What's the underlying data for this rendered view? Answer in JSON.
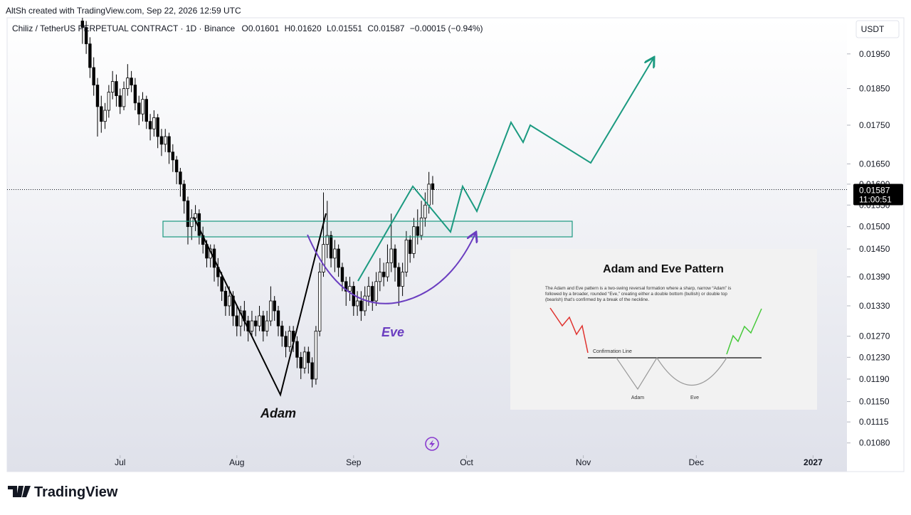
{
  "header": {
    "credit": "AltSh created with TradingView.com, Sep 22, 2026 12:59 UTC"
  },
  "chart_data": {
    "type": "candlestick",
    "legend": {
      "symbol": "Chiliz / TetherUS PERPETUAL CONTRACT · 1D · Binance",
      "open": "O0.01601",
      "high": "H0.01620",
      "low": "L0.01551",
      "close": "C0.01587",
      "change": "−0.00015 (−0.94%)"
    },
    "currency": "USDT",
    "log_scale": true,
    "up_color": "#ffffff",
    "down_color": "#000000",
    "x": [
      "2026-06-21",
      "2026-06-22",
      "2026-06-23",
      "2026-06-24",
      "2026-06-25",
      "2026-06-26",
      "2026-06-27",
      "2026-06-28",
      "2026-06-29",
      "2026-06-30",
      "2026-07-01",
      "2026-07-02",
      "2026-07-03",
      "2026-07-04",
      "2026-07-05",
      "2026-07-06",
      "2026-07-07",
      "2026-07-08",
      "2026-07-09",
      "2026-07-10",
      "2026-07-11",
      "2026-07-12",
      "2026-07-13",
      "2026-07-14",
      "2026-07-15",
      "2026-07-16",
      "2026-07-17",
      "2026-07-18",
      "2026-07-19",
      "2026-07-20",
      "2026-07-21",
      "2026-07-22",
      "2026-07-23",
      "2026-07-24",
      "2026-07-25",
      "2026-07-26",
      "2026-07-27",
      "2026-07-28",
      "2026-07-29",
      "2026-07-30",
      "2026-07-31",
      "2026-08-01",
      "2026-08-02",
      "2026-08-03",
      "2026-08-04",
      "2026-08-05",
      "2026-08-06",
      "2026-08-07",
      "2026-08-08",
      "2026-08-09",
      "2026-08-10",
      "2026-08-11",
      "2026-08-12",
      "2026-08-13",
      "2026-08-14",
      "2026-08-15",
      "2026-08-16",
      "2026-08-17",
      "2026-08-18",
      "2026-08-19",
      "2026-08-20",
      "2026-08-21",
      "2026-08-22",
      "2026-08-23",
      "2026-08-24",
      "2026-08-25",
      "2026-08-26",
      "2026-08-27",
      "2026-08-28",
      "2026-08-29",
      "2026-08-30",
      "2026-08-31",
      "2026-09-01",
      "2026-09-02",
      "2026-09-03",
      "2026-09-04",
      "2026-09-05",
      "2026-09-06",
      "2026-09-07",
      "2026-09-08",
      "2026-09-09",
      "2026-09-10",
      "2026-09-11",
      "2026-09-12",
      "2026-09-13",
      "2026-09-14",
      "2026-09-15",
      "2026-09-16",
      "2026-09-17",
      "2026-09-18",
      "2026-09-19",
      "2026-09-20",
      "2026-09-21",
      "2026-09-22"
    ],
    "open": [
      0.0205,
      0.0203,
      0.0198,
      0.0191,
      0.0186,
      0.018,
      0.0176,
      0.0179,
      0.0184,
      0.0187,
      0.0183,
      0.018,
      0.0185,
      0.0188,
      0.0186,
      0.0181,
      0.0178,
      0.0182,
      0.0176,
      0.0174,
      0.0177,
      0.0172,
      0.017,
      0.0172,
      0.0168,
      0.0166,
      0.0163,
      0.016,
      0.0156,
      0.015,
      0.0152,
      0.0153,
      0.0148,
      0.0146,
      0.0143,
      0.0145,
      0.0141,
      0.0139,
      0.0136,
      0.0133,
      0.0135,
      0.0131,
      0.0129,
      0.0132,
      0.013,
      0.0128,
      0.013,
      0.0129,
      0.0131,
      0.0128,
      0.013,
      0.0134,
      0.0132,
      0.0129,
      0.0127,
      0.0125,
      0.0128,
      0.0126,
      0.0123,
      0.0121,
      0.0124,
      0.0122,
      0.0119,
      0.0128,
      0.014,
      0.0146,
      0.0148,
      0.0143,
      0.0145,
      0.0141,
      0.0138,
      0.0136,
      0.0137,
      0.0133,
      0.0134,
      0.0132,
      0.0135,
      0.0137,
      0.0134,
      0.0138,
      0.014,
      0.0139,
      0.0142,
      0.0145,
      0.0141,
      0.0137,
      0.014,
      0.0147,
      0.0144,
      0.015,
      0.0148,
      0.0152,
      0.0155,
      0.01601
    ],
    "high": [
      0.021,
      0.0205,
      0.02,
      0.0194,
      0.0188,
      0.0183,
      0.0181,
      0.0186,
      0.019,
      0.0189,
      0.0185,
      0.0187,
      0.0192,
      0.019,
      0.0188,
      0.0183,
      0.0184,
      0.0183,
      0.0178,
      0.0179,
      0.0178,
      0.0174,
      0.0174,
      0.0173,
      0.017,
      0.0167,
      0.0164,
      0.0161,
      0.0157,
      0.0154,
      0.0155,
      0.0154,
      0.015,
      0.0147,
      0.0146,
      0.0146,
      0.0143,
      0.014,
      0.0137,
      0.0137,
      0.0136,
      0.0133,
      0.0133,
      0.0134,
      0.0131,
      0.0132,
      0.0131,
      0.0133,
      0.0132,
      0.0132,
      0.0137,
      0.0135,
      0.0133,
      0.013,
      0.0128,
      0.0129,
      0.0129,
      0.0127,
      0.0124,
      0.0125,
      0.0125,
      0.0123,
      0.0129,
      0.0142,
      0.0158,
      0.0156,
      0.0149,
      0.0147,
      0.0146,
      0.0142,
      0.0139,
      0.0139,
      0.0138,
      0.0136,
      0.0136,
      0.0137,
      0.0139,
      0.0138,
      0.014,
      0.0143,
      0.0142,
      0.0146,
      0.0153,
      0.0146,
      0.0142,
      0.0142,
      0.0149,
      0.0148,
      0.0152,
      0.0154,
      0.0156,
      0.0158,
      0.0163,
      0.0162
    ],
    "low": [
      0.0198,
      0.0195,
      0.0188,
      0.0183,
      0.0172,
      0.0173,
      0.0174,
      0.0177,
      0.0182,
      0.018,
      0.0178,
      0.0179,
      0.0183,
      0.0184,
      0.0179,
      0.0175,
      0.0176,
      0.0174,
      0.0171,
      0.0172,
      0.0169,
      0.0167,
      0.0168,
      0.0165,
      0.0163,
      0.016,
      0.0157,
      0.0153,
      0.0146,
      0.0147,
      0.0149,
      0.0146,
      0.0144,
      0.0141,
      0.0141,
      0.0138,
      0.0137,
      0.0134,
      0.0131,
      0.0131,
      0.0129,
      0.0127,
      0.0127,
      0.0128,
      0.0126,
      0.0127,
      0.0127,
      0.0128,
      0.0126,
      0.0127,
      0.0129,
      0.013,
      0.0127,
      0.0125,
      0.0123,
      0.0124,
      0.0124,
      0.0121,
      0.0119,
      0.012,
      0.012,
      0.01175,
      0.0118,
      0.0127,
      0.0139,
      0.0143,
      0.0141,
      0.014,
      0.0139,
      0.0136,
      0.0133,
      0.0134,
      0.0131,
      0.0131,
      0.013,
      0.0131,
      0.0133,
      0.0132,
      0.0133,
      0.0136,
      0.0137,
      0.0138,
      0.014,
      0.0138,
      0.0133,
      0.0135,
      0.0139,
      0.0142,
      0.0143,
      0.0146,
      0.0147,
      0.015,
      0.0153,
      0.01551
    ],
    "close": [
      0.0203,
      0.0198,
      0.0191,
      0.0186,
      0.018,
      0.0176,
      0.0179,
      0.0184,
      0.0187,
      0.0183,
      0.018,
      0.0185,
      0.0188,
      0.0186,
      0.0181,
      0.0178,
      0.0182,
      0.0176,
      0.0174,
      0.0177,
      0.0172,
      0.017,
      0.0172,
      0.0168,
      0.0166,
      0.0163,
      0.016,
      0.0156,
      0.015,
      0.0152,
      0.0153,
      0.0148,
      0.0146,
      0.0143,
      0.0145,
      0.0141,
      0.0139,
      0.0136,
      0.0133,
      0.0135,
      0.0131,
      0.0129,
      0.0132,
      0.013,
      0.0128,
      0.013,
      0.0129,
      0.0131,
      0.0128,
      0.013,
      0.0134,
      0.0132,
      0.0129,
      0.0127,
      0.0125,
      0.0128,
      0.0126,
      0.0123,
      0.0121,
      0.0124,
      0.0122,
      0.0119,
      0.0128,
      0.014,
      0.0146,
      0.0148,
      0.0143,
      0.0145,
      0.0141,
      0.0138,
      0.0136,
      0.0137,
      0.0133,
      0.0134,
      0.0132,
      0.0135,
      0.0137,
      0.0134,
      0.0138,
      0.014,
      0.0139,
      0.0142,
      0.0145,
      0.0141,
      0.0137,
      0.014,
      0.0147,
      0.0144,
      0.015,
      0.0148,
      0.0152,
      0.0155,
      0.016,
      0.01587
    ],
    "xlim": [
      "2026-06-01",
      "2027-01-10"
    ],
    "xticks": [
      {
        "value": "2026-07-01",
        "label": "Jul"
      },
      {
        "value": "2026-08-01",
        "label": "Aug"
      },
      {
        "value": "2026-09-01",
        "label": "Sep"
      },
      {
        "value": "2026-10-01",
        "label": "Oct"
      },
      {
        "value": "2026-11-01",
        "label": "Nov"
      },
      {
        "value": "2026-12-01",
        "label": "Dec"
      },
      {
        "value": "2027-01-01",
        "label": "2027"
      }
    ],
    "ylim": [
      0.0106,
      0.0206
    ],
    "yticks": [
      {
        "value": 0.0195,
        "label": "0.01950"
      },
      {
        "value": 0.0185,
        "label": "0.01850"
      },
      {
        "value": 0.0175,
        "label": "0.01750"
      },
      {
        "value": 0.0165,
        "label": "0.01650"
      },
      {
        "value": 0.016,
        "label": "0.01600"
      },
      {
        "value": 0.0155,
        "label": "0.01550"
      },
      {
        "value": 0.015,
        "label": "0.01500"
      },
      {
        "value": 0.0145,
        "label": "0.01450"
      },
      {
        "value": 0.0139,
        "label": "0.01390"
      },
      {
        "value": 0.0133,
        "label": "0.01330"
      },
      {
        "value": 0.0127,
        "label": "0.01270"
      },
      {
        "value": 0.0123,
        "label": "0.01230"
      },
      {
        "value": 0.0119,
        "label": "0.01190"
      },
      {
        "value": 0.0115,
        "label": "0.01150"
      },
      0.01115,
      {
        "value": 0.0108,
        "label": "0.01080"
      }
    ],
    "last_price": {
      "value": 0.01587,
      "label": "0.01587"
    },
    "countdown": "11:00:51",
    "annotations": {
      "adam": "Adam",
      "eve": "Eve"
    }
  },
  "inset": {
    "title": "Adam and Eve Pattern",
    "description": [
      "The Adam and Eve pattern is a two-swing reversal formation where a sharp, narrow “Adam” is",
      "followed by a broader, rounded “Eve,” creating either a double bottom (bullish) or double top",
      "(bearish) that’s confirmed by a break of the neckline."
    ],
    "confirmation": "Confirmation Line",
    "adam": "Adam",
    "eve": "Eve"
  },
  "footer": {
    "brand": "TradingView"
  }
}
